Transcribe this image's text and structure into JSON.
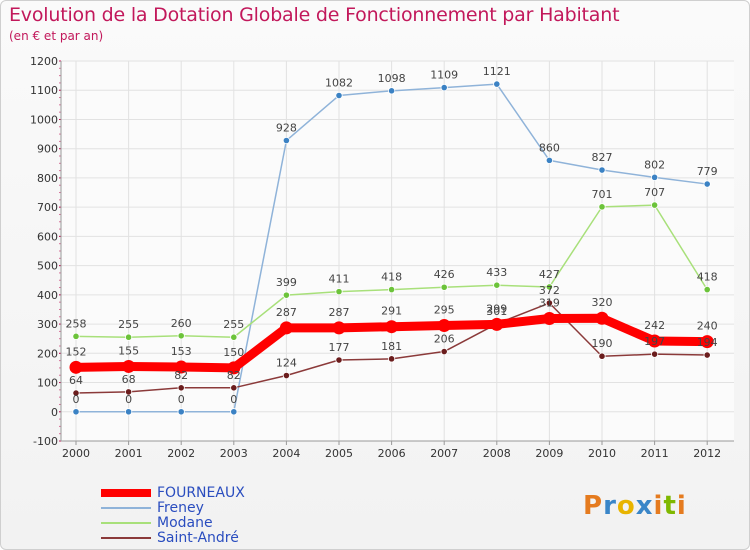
{
  "header": {
    "title": "Evolution de la Dotation Globale de Fonctionnement par Habitant",
    "subtitle": "(en € et par an)"
  },
  "logo": {
    "text": "Proxiti",
    "colors": [
      "#e57b1f",
      "#3a86c8",
      "#e8b400",
      "#3a86c8",
      "#e57b1f",
      "#7fb800",
      "#e57b1f"
    ]
  },
  "chart_data": {
    "type": "line",
    "title": "Evolution de la Dotation Globale de Fonctionnement par Habitant",
    "subtitle": "(en € et par an)",
    "xlabel": "",
    "ylabel": "",
    "ylim": [
      -100,
      1200
    ],
    "yticks": [
      -100,
      0,
      100,
      200,
      300,
      400,
      500,
      600,
      700,
      800,
      900,
      1000,
      1100,
      1200
    ],
    "grid": true,
    "legend_position": "bottom-left",
    "categories": [
      "2000",
      "2001",
      "2002",
      "2003",
      "2004",
      "2005",
      "2006",
      "2007",
      "2008",
      "2009",
      "2010",
      "2011",
      "2012"
    ],
    "series": [
      {
        "name": "FOURNEAUX",
        "color": "#ff0000",
        "marker": "#ff0000",
        "emphasis": true,
        "values": [
          152,
          155,
          153,
          150,
          287,
          287,
          291,
          295,
          299,
          319,
          320,
          242,
          240
        ],
        "labels": [
          "152",
          "155",
          "153",
          "150",
          "287",
          "287",
          "291",
          "295",
          "299",
          "319",
          "320",
          "242",
          "240"
        ]
      },
      {
        "name": "Freney",
        "color": "#8fb3d9",
        "marker": "#3b82c4",
        "values": [
          0,
          0,
          0,
          0,
          928,
          1082,
          1098,
          1109,
          1121,
          860,
          827,
          802,
          779
        ],
        "labels": [
          "0",
          "0",
          "0",
          "0",
          "928",
          "1082",
          "1098",
          "1109",
          "1121",
          "860",
          "827",
          "802",
          "779"
        ]
      },
      {
        "name": "Modane",
        "color": "#a8e07a",
        "marker": "#6cc33a",
        "values": [
          258,
          255,
          260,
          255,
          399,
          411,
          418,
          426,
          433,
          427,
          701,
          707,
          418
        ],
        "labels": [
          "258",
          "255",
          "260",
          "255",
          "399",
          "411",
          "418",
          "426",
          "433",
          "427",
          "701",
          "707",
          "418"
        ]
      },
      {
        "name": "Saint-André",
        "color": "#8b3a3a",
        "marker": "#6b1d1d",
        "values": [
          64,
          68,
          82,
          82,
          124,
          177,
          181,
          206,
          301,
          372,
          190,
          197,
          194
        ],
        "labels": [
          "64",
          "68",
          "82",
          "82",
          "124",
          "177",
          "181",
          "206",
          "301",
          "372",
          "190",
          "197",
          "194"
        ]
      }
    ]
  }
}
